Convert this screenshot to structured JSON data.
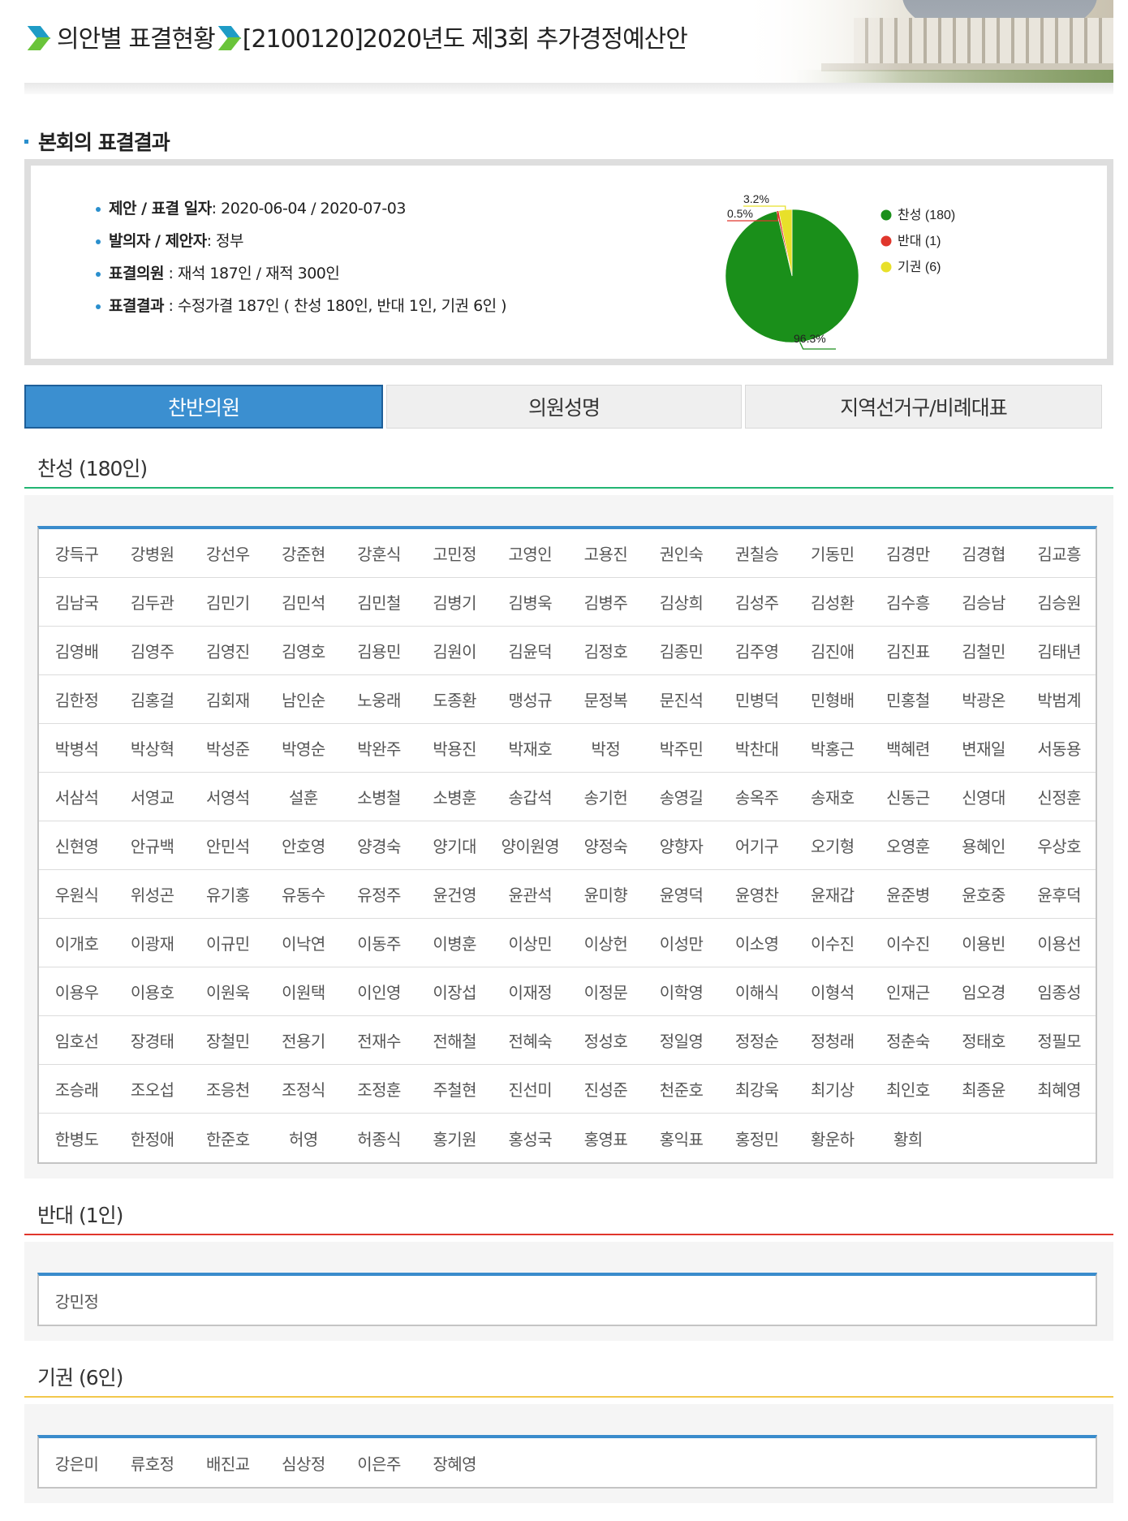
{
  "header": {
    "crumb1": "의안별 표결현황",
    "crumb2": "[2100120]2020년도 제3회 추가경정예산안"
  },
  "section_title": "본회의 표결결과",
  "summary": {
    "date_label": "제안 / 표결 일자",
    "date_value": ":  2020-06-04  /  2020-07-03",
    "proposer_label": "발의자 / 제안자",
    "proposer_value": ":  정부",
    "members_label": "표결의원",
    "members_value": "  :  재석 187인 / 재적 300인",
    "result_label": "표결결과",
    "result_value": "  :  수정가결 187인 ( 찬성 180인, 반대 1인, 기권 6인 )"
  },
  "chart_data": {
    "type": "pie",
    "slices": [
      {
        "label": "찬성 (180)",
        "value": 180,
        "percent": "96.3%",
        "color": "#1a8f1a"
      },
      {
        "label": "반대 (1)",
        "value": 1,
        "percent": "0.5%",
        "color": "#e0362c"
      },
      {
        "label": "기권 (6)",
        "value": 6,
        "percent": "3.2%",
        "color": "#e8e02a"
      }
    ],
    "legend": "right"
  },
  "tabs": [
    "찬반의원",
    "의원성명",
    "지역선거구/비례대표"
  ],
  "groups": [
    {
      "title": "찬성 (180인)",
      "color": "#22b573",
      "members": [
        "강득구",
        "강병원",
        "강선우",
        "강준현",
        "강훈식",
        "고민정",
        "고영인",
        "고용진",
        "권인숙",
        "권칠승",
        "기동민",
        "김경만",
        "김경협",
        "김교흥",
        "김남국",
        "김두관",
        "김민기",
        "김민석",
        "김민철",
        "김병기",
        "김병욱",
        "김병주",
        "김상희",
        "김성주",
        "김성환",
        "김수흥",
        "김승남",
        "김승원",
        "김영배",
        "김영주",
        "김영진",
        "김영호",
        "김용민",
        "김원이",
        "김윤덕",
        "김정호",
        "김종민",
        "김주영",
        "김진애",
        "김진표",
        "김철민",
        "김태년",
        "김한정",
        "김홍걸",
        "김회재",
        "남인순",
        "노웅래",
        "도종환",
        "맹성규",
        "문정복",
        "문진석",
        "민병덕",
        "민형배",
        "민홍철",
        "박광온",
        "박범계",
        "박병석",
        "박상혁",
        "박성준",
        "박영순",
        "박완주",
        "박용진",
        "박재호",
        "박정",
        "박주민",
        "박찬대",
        "박홍근",
        "백혜련",
        "변재일",
        "서동용",
        "서삼석",
        "서영교",
        "서영석",
        "설훈",
        "소병철",
        "소병훈",
        "송갑석",
        "송기헌",
        "송영길",
        "송옥주",
        "송재호",
        "신동근",
        "신영대",
        "신정훈",
        "신현영",
        "안규백",
        "안민석",
        "안호영",
        "양경숙",
        "양기대",
        "양이원영",
        "양정숙",
        "양향자",
        "어기구",
        "오기형",
        "오영훈",
        "용혜인",
        "우상호",
        "우원식",
        "위성곤",
        "유기홍",
        "유동수",
        "유정주",
        "윤건영",
        "윤관석",
        "윤미향",
        "윤영덕",
        "윤영찬",
        "윤재갑",
        "윤준병",
        "윤호중",
        "윤후덕",
        "이개호",
        "이광재",
        "이규민",
        "이낙연",
        "이동주",
        "이병훈",
        "이상민",
        "이상헌",
        "이성만",
        "이소영",
        "이수진",
        "이수진",
        "이용빈",
        "이용선",
        "이용우",
        "이용호",
        "이원욱",
        "이원택",
        "이인영",
        "이장섭",
        "이재정",
        "이정문",
        "이학영",
        "이해식",
        "이형석",
        "인재근",
        "임오경",
        "임종성",
        "임호선",
        "장경태",
        "장철민",
        "전용기",
        "전재수",
        "전해철",
        "전혜숙",
        "정성호",
        "정일영",
        "정정순",
        "정청래",
        "정춘숙",
        "정태호",
        "정필모",
        "조승래",
        "조오섭",
        "조응천",
        "조정식",
        "조정훈",
        "주철현",
        "진선미",
        "진성준",
        "천준호",
        "최강욱",
        "최기상",
        "최인호",
        "최종윤",
        "최혜영",
        "한병도",
        "한정애",
        "한준호",
        "허영",
        "허종식",
        "홍기원",
        "홍성국",
        "홍영표",
        "홍익표",
        "홍정민",
        "황운하",
        "황희"
      ]
    },
    {
      "title": "반대 (1인)",
      "color": "#e0362c",
      "members": [
        "강민정"
      ]
    },
    {
      "title": "기권 (6인)",
      "color": "#f2c84b",
      "members": [
        "강은미",
        "류호정",
        "배진교",
        "심상정",
        "이은주",
        "장혜영"
      ]
    }
  ]
}
